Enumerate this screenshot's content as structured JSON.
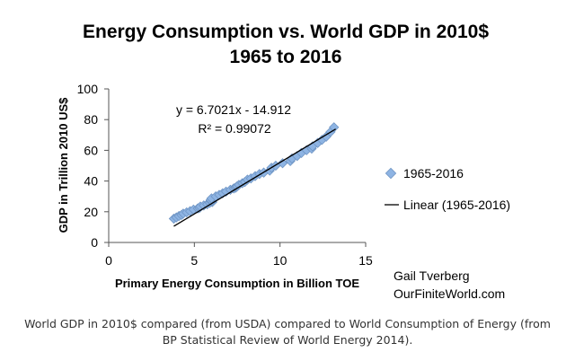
{
  "chart_data": {
    "type": "scatter",
    "title": "Energy Consumption vs. World GDP in 2010$",
    "subtitle": "1965 to 2016",
    "xlabel": "Primary Energy Consumption in Billion TOE",
    "ylabel": "GDP in Trillion 2010 US$",
    "xlim": [
      0,
      15
    ],
    "ylim": [
      0,
      100
    ],
    "xticks": [
      "0",
      "5",
      "10",
      "15"
    ],
    "yticks": [
      "0",
      "20",
      "40",
      "60",
      "80",
      "100"
    ],
    "grid": false,
    "legend_position": "right",
    "series": [
      {
        "name": "1965-2016",
        "marker": "diamond",
        "color": "#8eb4e3",
        "x": [
          3.8,
          3.95,
          4.1,
          4.25,
          4.35,
          4.55,
          4.75,
          4.95,
          5.2,
          5.3,
          5.35,
          5.55,
          5.75,
          5.9,
          6.05,
          6.0,
          5.95,
          5.95,
          6.0,
          6.25,
          6.45,
          6.65,
          6.85,
          7.1,
          7.3,
          7.4,
          7.45,
          7.5,
          7.6,
          7.8,
          7.95,
          8.1,
          8.3,
          8.55,
          8.8,
          9.05,
          9.4,
          9.5,
          9.75,
          10.15,
          10.6,
          10.7,
          11.0,
          11.25,
          11.55,
          11.85,
          11.9,
          12.2,
          12.45,
          12.7,
          12.95,
          13.15
        ],
        "y": [
          15.5,
          16.3,
          17.2,
          17.9,
          18.8,
          19.6,
          20.4,
          21.4,
          22.2,
          22.5,
          23.4,
          24.1,
          24.9,
          25.8,
          26.3,
          26.7,
          27.1,
          27.7,
          28.7,
          30.0,
          31.0,
          32.0,
          33.1,
          34.3,
          35.2,
          35.6,
          36.1,
          36.6,
          37.5,
          38.6,
          39.4,
          40.9,
          41.7,
          43.2,
          44.6,
          45.5,
          46.8,
          48.7,
          50.0,
          51.6,
          53.0,
          54.7,
          56.3,
          58.3,
          60.1,
          61.1,
          62.6,
          64.8,
          66.8,
          68.9,
          72.0,
          75.0
        ]
      },
      {
        "name": "Linear (1965-2016)",
        "marker": "line",
        "color": "#000000",
        "slope": 6.7021,
        "intercept": -14.912,
        "x_range": [
          3.8,
          13.25
        ]
      }
    ],
    "annotations": [
      "y = 6.7021x - 14.912",
      "R² = 0.99072"
    ],
    "attribution": [
      "Gail Tverberg",
      "OurFiniteWorld.com"
    ]
  },
  "caption": "World GDP in 2010$ compared (from USDA) compared to World Consumption of Energy (from BP Statistical Review of World Energy 2014)."
}
